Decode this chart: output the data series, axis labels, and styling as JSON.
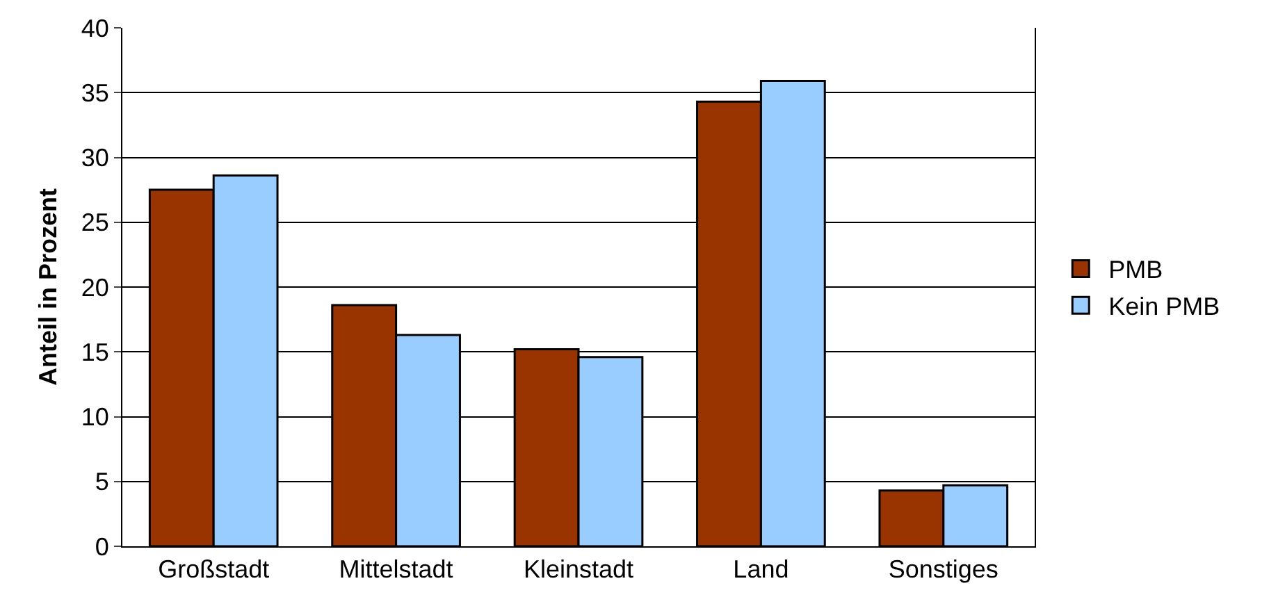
{
  "chart_data": {
    "type": "bar",
    "ylabel": "Anteil in Prozent",
    "categories": [
      "Großstadt",
      "Mittelstadt",
      "Kleinstadt",
      "Land",
      "Sonstiges"
    ],
    "series": [
      {
        "name": "PMB",
        "color": "#993300",
        "values": [
          27.5,
          18.6,
          15.2,
          34.3,
          4.3
        ]
      },
      {
        "name": "Kein PMB",
        "color": "#99ccff",
        "values": [
          28.6,
          16.3,
          14.6,
          35.9,
          4.7
        ]
      }
    ],
    "ylim": [
      0,
      40
    ],
    "yticks": [
      0,
      5,
      10,
      15,
      20,
      25,
      30,
      35,
      40
    ],
    "grid": "y",
    "legend": "right"
  }
}
